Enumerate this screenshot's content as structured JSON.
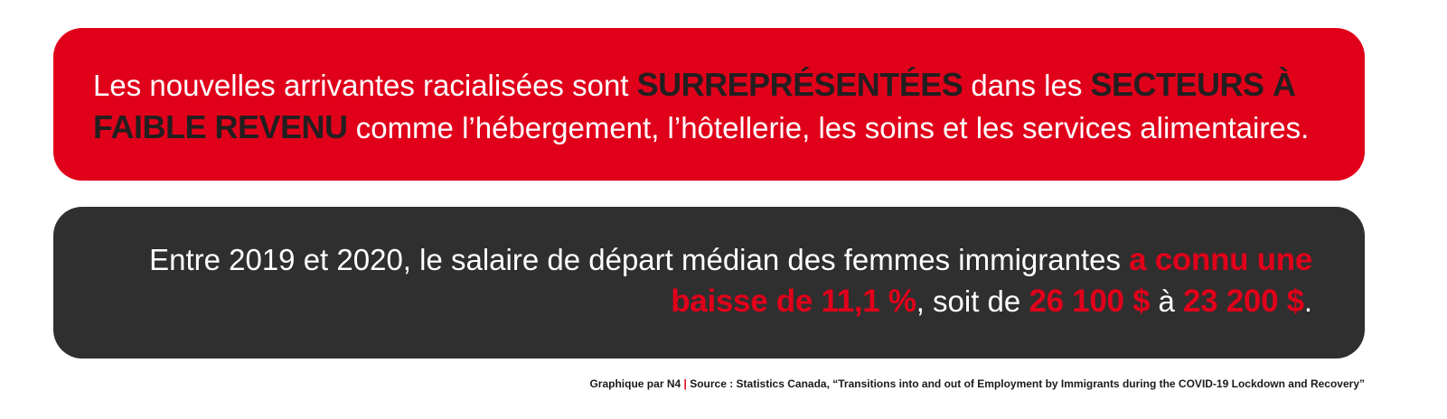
{
  "colors": {
    "red": "#e1001a",
    "dark": "#2f2f2f",
    "highlight_dark_text": "#231f20",
    "white": "#ffffff"
  },
  "panel_top": {
    "t1": "Les nouvelles arrivantes racialisées sont ",
    "b1": "SURREPRÉSENTÉES",
    "t2": " dans les ",
    "b2": "SECTEURS À FAIBLE REVENU",
    "t3": " comme l’hébergement, l’hôtellerie, les soins et les services alimentaires."
  },
  "panel_bottom": {
    "t1": "Entre 2019 et 2020, le salaire de départ médian des femmes immigrantes ",
    "b1": "a connu une baisse de 11,1 %",
    "t2": ", soit de ",
    "b2": "26 100 $",
    "t3": " à ",
    "b3": "23 200 $",
    "t4": "."
  },
  "footer": {
    "credit": "Graphique par N4",
    "separator": "|",
    "source": "Source : Statistics Canada, “Transitions into and out of Employment by Immigrants during the COVID-19 Lockdown and Recovery”"
  }
}
